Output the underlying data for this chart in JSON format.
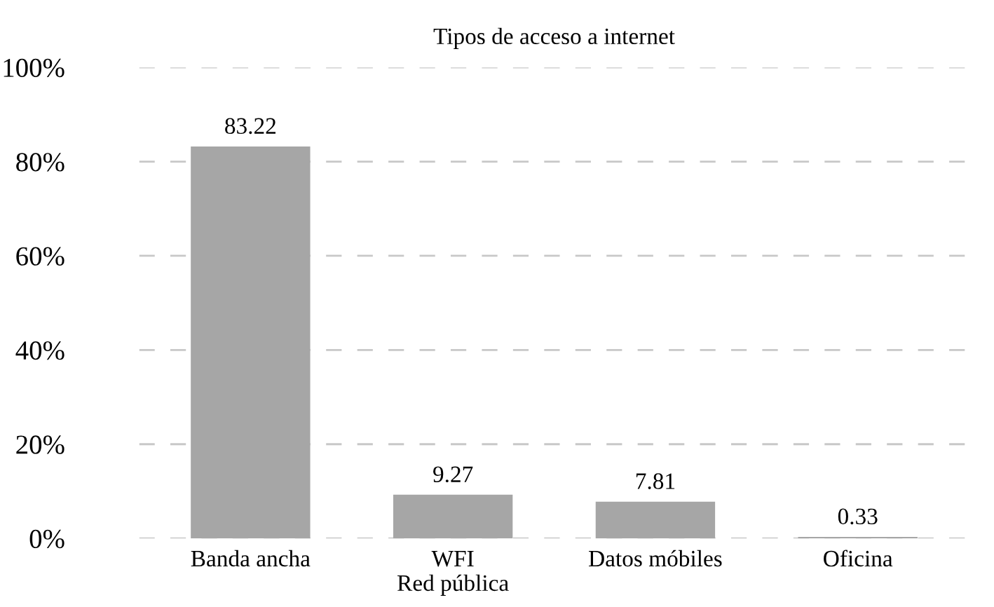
{
  "chart_data": {
    "type": "bar",
    "title": "Tipos de acceso a internet",
    "categories": [
      "Banda ancha",
      "WFI\nRed pública",
      "Datos móbiles",
      "Oficina"
    ],
    "values": [
      83.22,
      9.27,
      7.81,
      0.33
    ],
    "color": "#a6a6a6",
    "data_labels": true,
    "ylim": [
      0,
      100
    ],
    "yticks": [
      {
        "value": 0,
        "label": "0%"
      },
      {
        "value": 20,
        "label": "20%"
      },
      {
        "value": 40,
        "label": "40%"
      },
      {
        "value": 60,
        "label": "60%"
      },
      {
        "value": 80,
        "label": "80%"
      },
      {
        "value": 100,
        "label": "100%"
      }
    ],
    "grid": "y",
    "line_style": "dashed"
  }
}
